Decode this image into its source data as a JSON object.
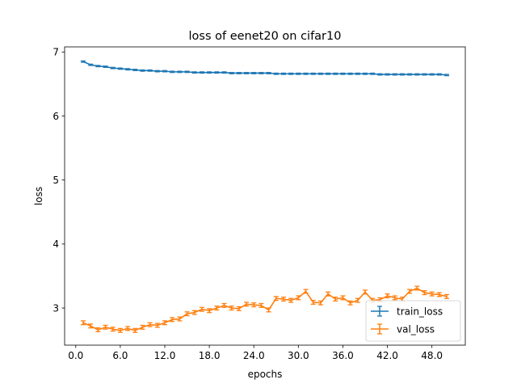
{
  "chart_data": {
    "type": "line",
    "title": "loss of eenet20 on cifar10",
    "xlabel": "epochs",
    "ylabel": "loss",
    "xlim": [
      -1.5,
      52.5
    ],
    "ylim": [
      2.42,
      7.08
    ],
    "xticks": [
      0,
      6,
      12,
      18,
      24,
      30,
      36,
      42,
      48
    ],
    "xtick_labels": [
      "0.0",
      "6.0",
      "12.0",
      "18.0",
      "24.0",
      "30.0",
      "36.0",
      "42.0",
      "48.0"
    ],
    "yticks": [
      3,
      4,
      5,
      6,
      7
    ],
    "ytick_labels": [
      "3",
      "4",
      "5",
      "6",
      "7"
    ],
    "legend_position": "lower-right",
    "x": [
      1,
      2,
      3,
      4,
      5,
      6,
      7,
      8,
      9,
      10,
      11,
      12,
      13,
      14,
      15,
      16,
      17,
      18,
      19,
      20,
      21,
      22,
      23,
      24,
      25,
      26,
      27,
      28,
      29,
      30,
      31,
      32,
      33,
      34,
      35,
      36,
      37,
      38,
      39,
      40,
      41,
      42,
      43,
      44,
      45,
      46,
      47,
      48,
      49,
      50
    ],
    "series": [
      {
        "name": "train_loss",
        "color": "#1f77b4",
        "error": 0.01,
        "values": [
          6.85,
          6.8,
          6.78,
          6.77,
          6.75,
          6.74,
          6.73,
          6.72,
          6.71,
          6.71,
          6.7,
          6.7,
          6.69,
          6.69,
          6.69,
          6.68,
          6.68,
          6.68,
          6.68,
          6.68,
          6.67,
          6.67,
          6.67,
          6.67,
          6.67,
          6.67,
          6.66,
          6.66,
          6.66,
          6.66,
          6.66,
          6.66,
          6.66,
          6.66,
          6.66,
          6.66,
          6.66,
          6.66,
          6.66,
          6.66,
          6.65,
          6.65,
          6.65,
          6.65,
          6.65,
          6.65,
          6.65,
          6.65,
          6.65,
          6.64
        ]
      },
      {
        "name": "val_loss",
        "color": "#ff7f0e",
        "error": 0.03,
        "values": [
          2.77,
          2.72,
          2.66,
          2.7,
          2.67,
          2.65,
          2.68,
          2.65,
          2.7,
          2.74,
          2.73,
          2.77,
          2.82,
          2.83,
          2.91,
          2.93,
          2.98,
          2.96,
          3.0,
          3.04,
          3.0,
          2.99,
          3.06,
          3.05,
          3.04,
          2.97,
          3.15,
          3.14,
          3.12,
          3.16,
          3.26,
          3.09,
          3.08,
          3.22,
          3.14,
          3.16,
          3.08,
          3.12,
          3.25,
          3.12,
          3.13,
          3.19,
          3.16,
          3.14,
          3.26,
          3.31,
          3.24,
          3.22,
          3.21,
          3.18
        ]
      }
    ]
  }
}
